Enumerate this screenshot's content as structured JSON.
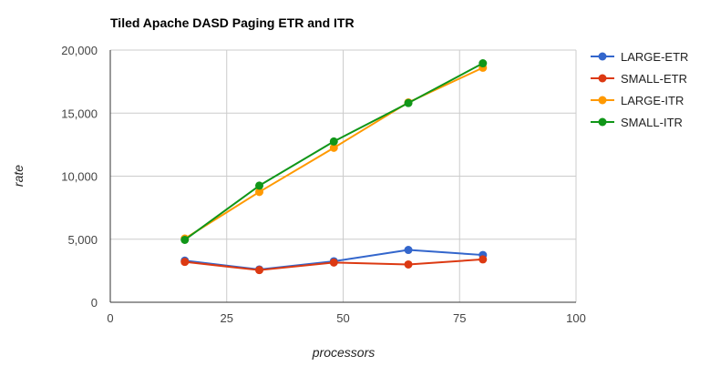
{
  "chart_data": {
    "type": "line",
    "title": "Tiled Apache DASD Paging ETR and ITR",
    "xlabel": "processors",
    "ylabel": "rate",
    "xlim": [
      0,
      100
    ],
    "ylim": [
      0,
      20000
    ],
    "x_ticks": [
      0,
      25,
      50,
      75,
      100
    ],
    "y_ticks": [
      0,
      5000,
      10000,
      15000,
      20000
    ],
    "x_tick_labels": [
      "0",
      "25",
      "50",
      "75",
      "100"
    ],
    "y_tick_labels": [
      "0",
      "5,000",
      "10,000",
      "15,000",
      "20,000"
    ],
    "grid": true,
    "legend_position": "right",
    "x": [
      16,
      32,
      48,
      64,
      80
    ],
    "series": [
      {
        "name": "LARGE-ETR",
        "color": "#3366cc",
        "values": [
          3300,
          2600,
          3250,
          4150,
          3750
        ]
      },
      {
        "name": "SMALL-ETR",
        "color": "#dc3912",
        "values": [
          3200,
          2550,
          3150,
          3000,
          3400
        ]
      },
      {
        "name": "LARGE-ITR",
        "color": "#ff9900",
        "values": [
          5050,
          8750,
          12250,
          15850,
          18600
        ]
      },
      {
        "name": "SMALL-ITR",
        "color": "#109618",
        "values": [
          4950,
          9250,
          12750,
          15800,
          18950
        ]
      }
    ]
  }
}
